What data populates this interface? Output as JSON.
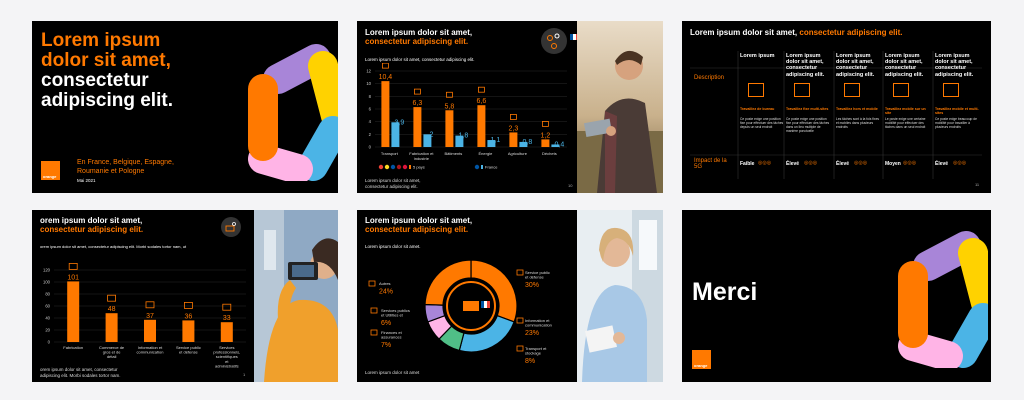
{
  "slide1": {
    "title_lines": [
      "Lorem ipsum",
      "dolor sit amet,",
      "consectetur",
      "adipiscing elit."
    ],
    "subtitle_lines": [
      "En France, Belgique, Espagne,",
      "Roumanie et Pologne"
    ],
    "date": "Mai 2021",
    "logo_text": "orange"
  },
  "slide2": {
    "title": "Lorem ipsum dolor sit amet,",
    "title_orange": "consectetur adipiscing elit.",
    "intro": "Lorem ipsum dolor sit amet, consectetur adipiscing elit.",
    "footer_lines": [
      "Lorem ipsum dolor sit amet,",
      "consectetur adipiscing elit."
    ],
    "page": "10",
    "legend": [
      "5 pays",
      "France"
    ]
  },
  "slide3": {
    "title": "Lorem ipsum dolor sit amet,",
    "title_orange": "consectetur adipiscing elit.",
    "columns": [
      "Lorem ipsum",
      "Lorem ipsum dolor sit amet, consectetur adipiscing elit.",
      "Lorem ipsum dolor sit amet, consectetur adipiscing elit.",
      "Lorem ipsum dolor sit amet, consectetur adipiscing elit.",
      "Lorem ipsum dolor sit amet, consectetur adipiscing elit."
    ],
    "row_description": "Description",
    "row_impact": "Impact de la 5G",
    "cells": [
      {
        "head": "Travaillez de bureau",
        "body": "Ce poste exige une position fixe pour effectuer des tâches depuis un seul endroit",
        "impact": "Faible"
      },
      {
        "head": "Travaillez fixe multi-sites",
        "body": "Ce poste exige une position fixe pour effectuer des tâches dans un lieu multiple de manière ponctuelle",
        "impact": "Élevé"
      },
      {
        "head": "Travaillez hors et mobile",
        "body": "Les tâches sont à la fois fixes et mobiles dans plusieurs endroits",
        "impact": "Élevé"
      },
      {
        "head": "Travaillez mobile sur un site",
        "body": "Le poste exige une certaine mobilité pour effectuer des tâches dans un seul endroit",
        "impact": "Moyen"
      },
      {
        "head": "Travaillez mobile et multi-sites",
        "body": "Ce poste exige beaucoup de mobilité pour travailler à plusieurs endroits",
        "impact": "Élevé"
      }
    ],
    "page": "11"
  },
  "slide4": {
    "title": "orem ipsum dolor sit amet,",
    "title_orange": "consectetur adipiscing elit.",
    "intro": "orem ipsum dolor sit amet, consectetur adipiscing elit. Morbi sodales tortor nam, ut",
    "footer_lines": [
      "orem ipsum dolor sit amet, consectetur",
      "adipiscing elit. Morbi sodales tortor nam."
    ],
    "page": "1"
  },
  "slide5": {
    "title": "Lorem ipsum dolor sit amet,",
    "title_orange": "consectetur adipiscing elit.",
    "intro": "Lorem ipsum dolor sit amet.",
    "footer": "Lorem ipsum dolor sit amet",
    "donut_labels": [
      {
        "label": "Autres",
        "value": "24%"
      },
      {
        "label": "Services publics et Utilities et",
        "value": "6%"
      },
      {
        "label": "Finances et assurances",
        "value": "7%"
      },
      {
        "label": "Service public et défense",
        "value": "30%"
      },
      {
        "label": "Information et communication",
        "value": "23%"
      },
      {
        "label": "Transport et stockage",
        "value": "8%"
      }
    ]
  },
  "slide6": {
    "title": "Merci",
    "logo_text": "orange"
  },
  "chart_data": [
    {
      "type": "bar",
      "categories": [
        "Transport",
        "Fabrication et industrie",
        "Bâtiments",
        "Énergie",
        "Agriculture",
        "Déchets"
      ],
      "series": [
        {
          "name": "5 pays",
          "values": [
            10.4,
            6.3,
            5.8,
            6.6,
            2.3,
            1.2
          ]
        },
        {
          "name": "France",
          "values": [
            3.9,
            2.0,
            1.8,
            1.1,
            0.8,
            0.4
          ]
        }
      ],
      "ylim": [
        0,
        12
      ],
      "yticks": [
        0,
        2,
        4,
        6,
        8,
        10,
        12
      ],
      "colors": [
        "#ff7900",
        "#4bb4e6"
      ]
    },
    {
      "type": "bar",
      "categories": [
        "Fabrication",
        "Commerce de gros et de détail",
        "Information et communication",
        "Service public et défense",
        "Services professionnels, scientifiques et administratifs"
      ],
      "values": [
        101,
        48,
        37,
        36,
        33
      ],
      "ylim": [
        0,
        120
      ],
      "yticks": [
        0,
        20,
        40,
        60,
        80,
        100,
        120
      ],
      "colors": [
        "#ff7900"
      ]
    },
    {
      "type": "pie",
      "categories": [
        "Service public et défense",
        "Information et communication",
        "Transport et stockage",
        "Finances et assurances",
        "Services publics et Utilities et",
        "Autres"
      ],
      "values": [
        30,
        23,
        8,
        7,
        6,
        24
      ],
      "colors": [
        "#ff7900",
        "#4bb4e6",
        "#50be87",
        "#ffb4e6",
        "#a885d8",
        "#ff7900"
      ]
    }
  ]
}
